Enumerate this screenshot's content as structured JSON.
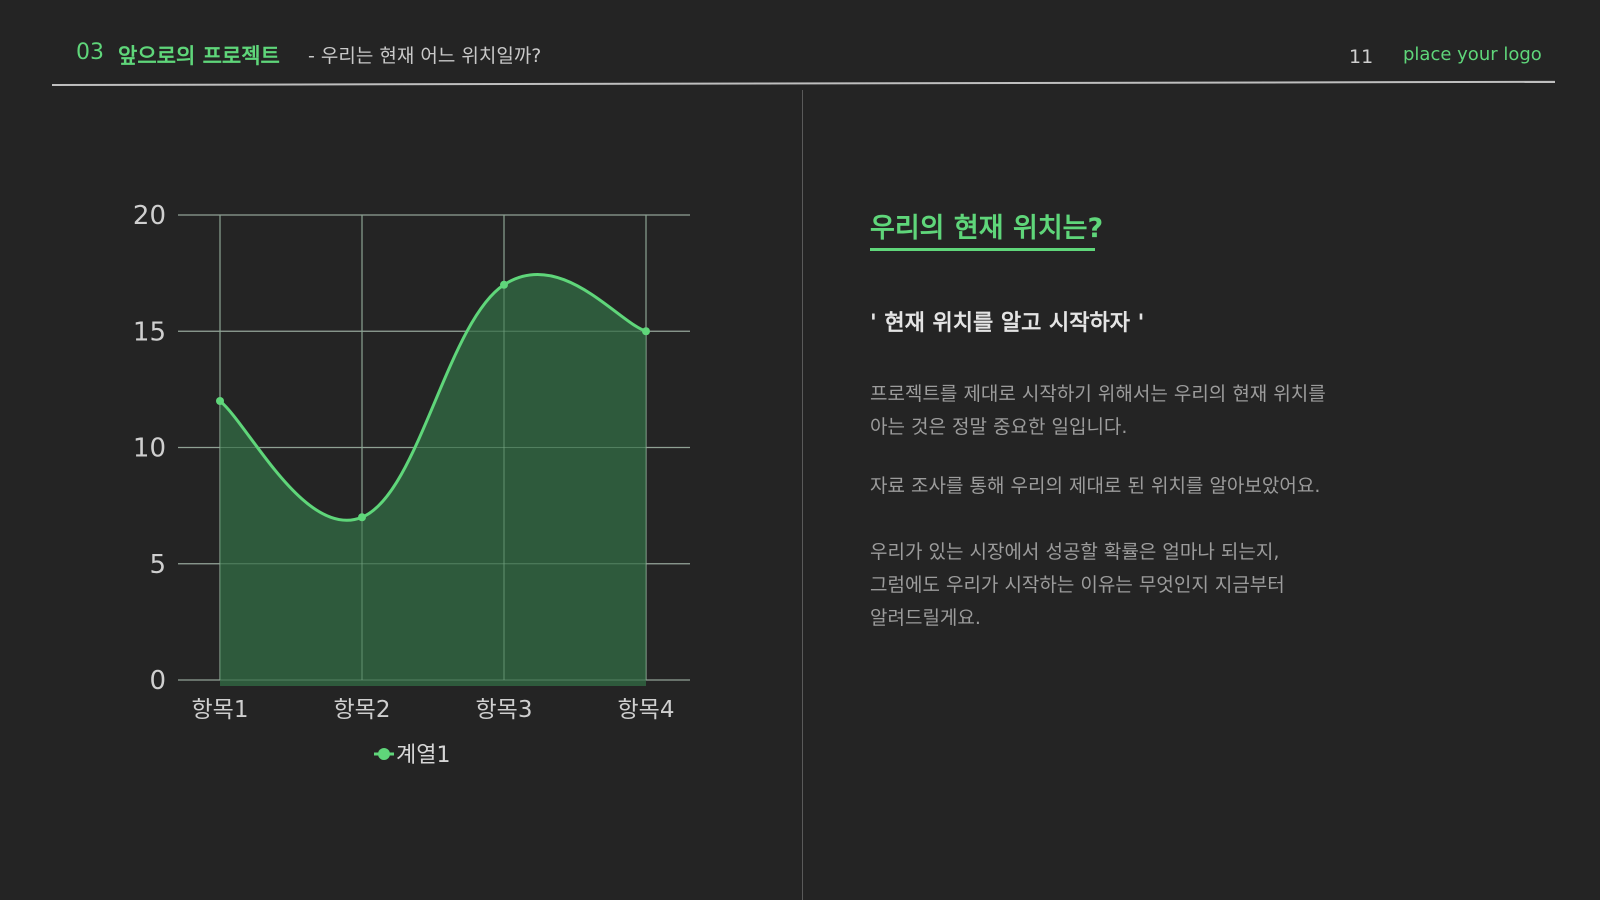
{
  "header": {
    "section_number": "03",
    "section_title": "앞으로의 프로젝트",
    "subtitle": "- 우리는 현재 어느 위치일까?",
    "page_number": "11",
    "logo_text": "place your logo"
  },
  "right_panel": {
    "heading": "우리의 현재 위치는?",
    "quote": "' 현재 위치를 알고 시작하자 '",
    "paragraphs": [
      [
        "프로젝트를 제대로 시작하기 위해서는 우리의 현재 위치를",
        "아는 것은 정말 중요한 일입니다."
      ],
      [
        "자료 조사를 통해 우리의 제대로 된 위치를 알아보았어요."
      ],
      [
        "우리가 있는 시장에서 성공할 확률은 얼마나 되는지,",
        "그럼에도 우리가 시작하는 이유는 무엇인지 지금부터",
        "알려드릴게요."
      ]
    ]
  },
  "colors": {
    "background": "#242424",
    "accent": "#5fd67a",
    "area_fill": "#2f5e3e",
    "grid": "#9a9a9a"
  },
  "chart_data": {
    "type": "area",
    "categories": [
      "항목1",
      "항목2",
      "항목3",
      "항목4"
    ],
    "series": [
      {
        "name": "계열1",
        "values": [
          12,
          7,
          17,
          15
        ]
      }
    ],
    "ylim": [
      0,
      20
    ],
    "yticks": [
      0,
      5,
      10,
      15,
      20
    ],
    "smooth": true,
    "markers": true,
    "grid": true,
    "legend_position": "bottom"
  }
}
